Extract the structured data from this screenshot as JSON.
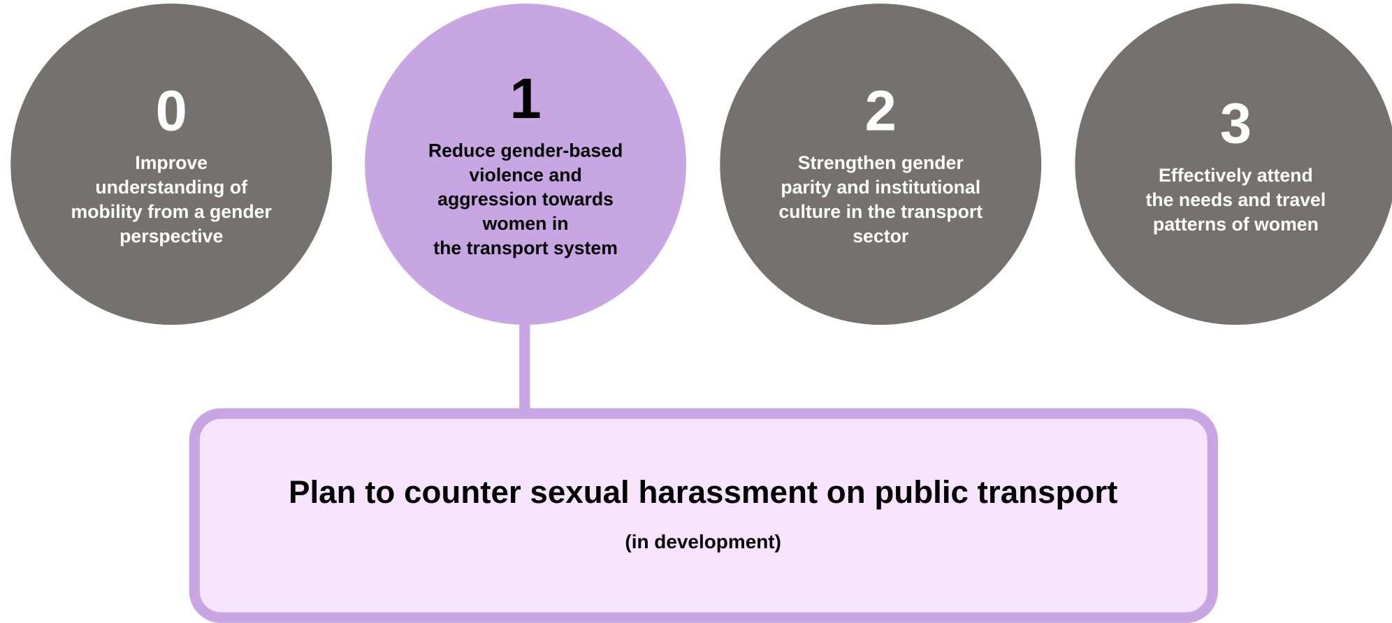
{
  "nodes": [
    {
      "number": "0",
      "lines": [
        "Improve",
        "understanding of",
        "mobility from a gender",
        "perspective"
      ]
    },
    {
      "number": "1",
      "lines": [
        "Reduce gender-based",
        "violence and",
        "aggression towards",
        "women in",
        "the transport system"
      ]
    },
    {
      "number": "2",
      "lines": [
        "Strengthen gender",
        "parity and institutional",
        "culture in the transport",
        "sector"
      ]
    },
    {
      "number": "3",
      "lines": [
        "Effectively attend",
        "the needs and travel",
        "patterns of women"
      ]
    }
  ],
  "box": {
    "title": "Plan to counter sexual harassment on public transport",
    "subtitle": "(in development)"
  }
}
